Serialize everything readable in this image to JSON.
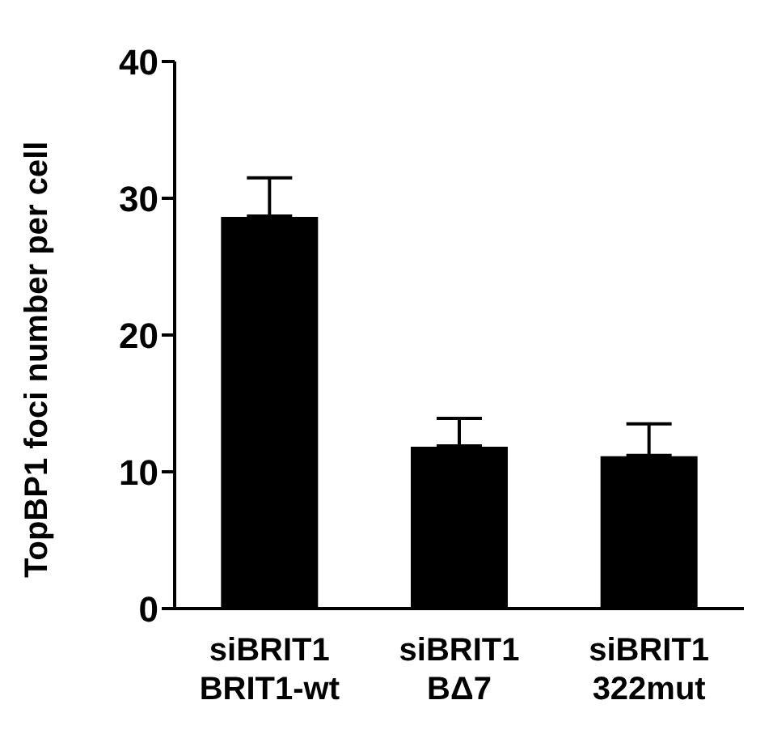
{
  "chart_data": {
    "type": "bar",
    "ylabel": "TopBP1 foci number per cell",
    "categories": [
      "siBRIT1\nBRIT1-wt",
      "siBRIT1\nBΔ7",
      "siBRIT1\n322mut"
    ],
    "values": [
      28.7,
      11.9,
      11.2
    ],
    "color": "#000000",
    "errors": [
      [
        28.7,
        31.5
      ],
      [
        11.9,
        13.9
      ],
      [
        11.2,
        13.5
      ]
    ],
    "ylim": [
      0,
      40
    ],
    "yticks": [
      0,
      10,
      20,
      30,
      40
    ],
    "grid": false,
    "legend": false
  }
}
